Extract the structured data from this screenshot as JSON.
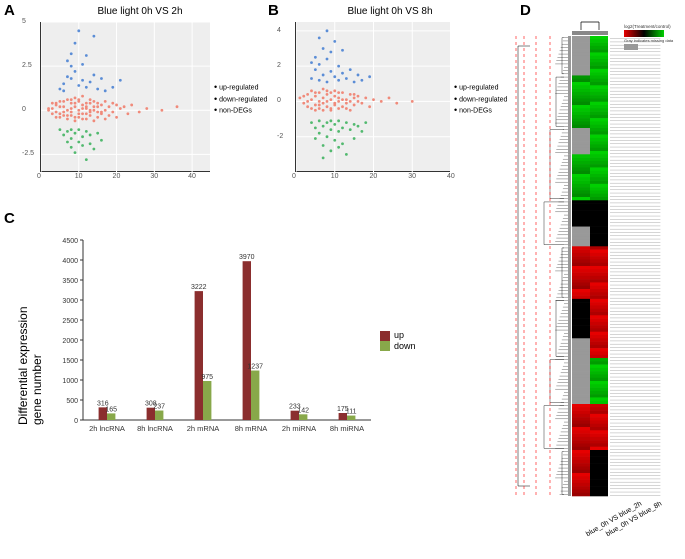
{
  "panelA": {
    "label": "A",
    "title": "Blue light 0h  VS   2h",
    "type": "scatter",
    "xlim": [
      0,
      45
    ],
    "xticks": [
      0,
      10,
      20,
      30,
      40
    ],
    "ylim": [
      -3.5,
      5
    ],
    "yticks": [
      -2.5,
      0,
      2.5,
      5
    ],
    "background_color": "#eeeeee",
    "categories": [
      "up-regulated",
      "down-regulated",
      "non-DEGs"
    ],
    "colors": {
      "up-regulated": "#5b8dd6",
      "down-regulated": "#52b96f",
      "non-DEGs": "#f08a7a"
    },
    "points": {
      "non-DEGs": [
        [
          2,
          0.1
        ],
        [
          3,
          -0.2
        ],
        [
          4,
          0.3
        ],
        [
          5,
          0.5
        ],
        [
          5,
          -0.4
        ],
        [
          6,
          0.2
        ],
        [
          6,
          -0.1
        ],
        [
          7,
          0.6
        ],
        [
          7,
          -0.5
        ],
        [
          8,
          0.1
        ],
        [
          8,
          0.4
        ],
        [
          8,
          -0.3
        ],
        [
          9,
          0.2
        ],
        [
          9,
          -0.6
        ],
        [
          9,
          0.7
        ],
        [
          10,
          0.0
        ],
        [
          10,
          0.5
        ],
        [
          10,
          -0.4
        ],
        [
          11,
          0.3
        ],
        [
          11,
          -0.2
        ],
        [
          11,
          0.8
        ],
        [
          12,
          -0.5
        ],
        [
          12,
          0.4
        ],
        [
          12,
          0.1
        ],
        [
          13,
          0.6
        ],
        [
          13,
          -0.3
        ],
        [
          13,
          0.0
        ],
        [
          14,
          0.2
        ],
        [
          14,
          -0.6
        ],
        [
          14,
          0.5
        ],
        [
          15,
          -0.1
        ],
        [
          15,
          0.4
        ],
        [
          15,
          -0.4
        ],
        [
          16,
          0.3
        ],
        [
          16,
          -0.2
        ],
        [
          17,
          0.0
        ],
        [
          17,
          0.5
        ],
        [
          17,
          -0.5
        ],
        [
          18,
          0.2
        ],
        [
          18,
          -0.3
        ],
        [
          19,
          0.4
        ],
        [
          19,
          -0.1
        ],
        [
          20,
          0.3
        ],
        [
          20,
          -0.4
        ],
        [
          21,
          0.1
        ],
        [
          22,
          0.2
        ],
        [
          23,
          -0.2
        ],
        [
          24,
          0.3
        ],
        [
          26,
          -0.1
        ],
        [
          28,
          0.1
        ],
        [
          32,
          0.0
        ],
        [
          36,
          0.2
        ],
        [
          2,
          0.0
        ],
        [
          3,
          0.1
        ],
        [
          4,
          -0.1
        ],
        [
          4,
          0.4
        ],
        [
          5,
          0.2
        ],
        [
          6,
          -0.3
        ],
        [
          7,
          0.0
        ],
        [
          8,
          -0.1
        ],
        [
          9,
          0.4
        ],
        [
          10,
          -0.2
        ],
        [
          11,
          0.1
        ],
        [
          12,
          0.2
        ],
        [
          13,
          -0.1
        ],
        [
          14,
          0.0
        ],
        [
          15,
          0.2
        ],
        [
          16,
          -0.1
        ],
        [
          3,
          0.4
        ],
        [
          4,
          -0.4
        ],
        [
          5,
          -0.2
        ],
        [
          6,
          0.5
        ],
        [
          7,
          -0.3
        ],
        [
          8,
          0.6
        ],
        [
          9,
          -0.4
        ],
        [
          10,
          0.6
        ],
        [
          11,
          -0.5
        ],
        [
          12,
          -0.2
        ],
        [
          13,
          0.4
        ]
      ],
      "up-regulated": [
        [
          5,
          1.2
        ],
        [
          6,
          1.5
        ],
        [
          7,
          2.8
        ],
        [
          8,
          3.2
        ],
        [
          8,
          1.8
        ],
        [
          9,
          2.2
        ],
        [
          9,
          3.8
        ],
        [
          10,
          1.4
        ],
        [
          10,
          4.5
        ],
        [
          11,
          2.6
        ],
        [
          12,
          1.3
        ],
        [
          12,
          3.1
        ],
        [
          13,
          1.6
        ],
        [
          14,
          2.0
        ],
        [
          15,
          1.2
        ],
        [
          16,
          1.8
        ],
        [
          17,
          1.1
        ],
        [
          19,
          1.3
        ],
        [
          21,
          1.7
        ],
        [
          7,
          1.9
        ],
        [
          8,
          2.5
        ],
        [
          11,
          1.7
        ],
        [
          14,
          4.2
        ],
        [
          6,
          1.1
        ]
      ],
      "down-regulated": [
        [
          5,
          -1.1
        ],
        [
          6,
          -1.4
        ],
        [
          7,
          -1.2
        ],
        [
          8,
          -1.6
        ],
        [
          8,
          -2.1
        ],
        [
          9,
          -1.3
        ],
        [
          9,
          -2.4
        ],
        [
          10,
          -1.1
        ],
        [
          10,
          -1.8
        ],
        [
          11,
          -1.5
        ],
        [
          12,
          -1.2
        ],
        [
          12,
          -2.8
        ],
        [
          13,
          -1.4
        ],
        [
          14,
          -2.2
        ],
        [
          15,
          -1.3
        ],
        [
          16,
          -1.7
        ],
        [
          7,
          -1.8
        ],
        [
          8,
          -1.1
        ],
        [
          11,
          -2.0
        ],
        [
          13,
          -1.9
        ]
      ]
    }
  },
  "panelB": {
    "label": "B",
    "title": "Blue light  0h  VS  8h",
    "type": "scatter",
    "xlim": [
      0,
      40
    ],
    "xticks": [
      0,
      10,
      20,
      30,
      40
    ],
    "ylim": [
      -4,
      4.5
    ],
    "yticks": [
      -2,
      0,
      2,
      4
    ],
    "background_color": "#eeeeee",
    "categories": [
      "up-regulated",
      "down-regulated",
      "non-DEGs"
    ],
    "colors": {
      "up-regulated": "#5b8dd6",
      "down-regulated": "#52b96f",
      "non-DEGs": "#f08a7a"
    },
    "points": {
      "non-DEGs": [
        [
          1,
          0.2
        ],
        [
          2,
          -0.1
        ],
        [
          3,
          0.4
        ],
        [
          3,
          -0.3
        ],
        [
          4,
          0.1
        ],
        [
          4,
          0.6
        ],
        [
          5,
          -0.2
        ],
        [
          5,
          0.3
        ],
        [
          5,
          -0.5
        ],
        [
          6,
          0.0
        ],
        [
          6,
          0.5
        ],
        [
          6,
          -0.4
        ],
        [
          7,
          0.2
        ],
        [
          7,
          -0.1
        ],
        [
          7,
          0.7
        ],
        [
          8,
          -0.3
        ],
        [
          8,
          0.4
        ],
        [
          8,
          0.0
        ],
        [
          9,
          0.5
        ],
        [
          9,
          -0.5
        ],
        [
          9,
          0.1
        ],
        [
          10,
          0.3
        ],
        [
          10,
          -0.2
        ],
        [
          10,
          0.6
        ],
        [
          11,
          -0.4
        ],
        [
          11,
          0.2
        ],
        [
          11,
          0.0
        ],
        [
          12,
          0.5
        ],
        [
          12,
          -0.3
        ],
        [
          13,
          0.1
        ],
        [
          13,
          -0.1
        ],
        [
          14,
          0.4
        ],
        [
          14,
          -0.5
        ],
        [
          15,
          0.2
        ],
        [
          15,
          -0.2
        ],
        [
          16,
          0.0
        ],
        [
          16,
          0.3
        ],
        [
          17,
          -0.1
        ],
        [
          18,
          0.2
        ],
        [
          19,
          -0.3
        ],
        [
          20,
          0.1
        ],
        [
          22,
          0.0
        ],
        [
          24,
          0.2
        ],
        [
          26,
          -0.1
        ],
        [
          30,
          0.0
        ],
        [
          2,
          0.3
        ],
        [
          3,
          0.0
        ],
        [
          4,
          -0.4
        ],
        [
          5,
          0.5
        ],
        [
          6,
          -0.2
        ],
        [
          7,
          -0.5
        ],
        [
          8,
          0.6
        ],
        [
          9,
          -0.4
        ],
        [
          10,
          -0.1
        ],
        [
          11,
          0.5
        ],
        [
          12,
          0.1
        ],
        [
          13,
          -0.4
        ],
        [
          14,
          0.0
        ],
        [
          15,
          0.4
        ]
      ],
      "up-regulated": [
        [
          4,
          1.3
        ],
        [
          5,
          1.8
        ],
        [
          5,
          2.5
        ],
        [
          6,
          1.2
        ],
        [
          6,
          2.1
        ],
        [
          7,
          3.0
        ],
        [
          7,
          1.5
        ],
        [
          8,
          2.4
        ],
        [
          8,
          1.1
        ],
        [
          9,
          1.7
        ],
        [
          9,
          2.8
        ],
        [
          10,
          1.4
        ],
        [
          10,
          3.4
        ],
        [
          11,
          2.0
        ],
        [
          11,
          1.2
        ],
        [
          12,
          1.6
        ],
        [
          12,
          2.9
        ],
        [
          13,
          1.3
        ],
        [
          14,
          1.8
        ],
        [
          15,
          1.1
        ],
        [
          16,
          1.5
        ],
        [
          17,
          1.2
        ],
        [
          19,
          1.4
        ],
        [
          6,
          3.6
        ],
        [
          8,
          4.0
        ],
        [
          4,
          2.2
        ]
      ],
      "down-regulated": [
        [
          4,
          -1.2
        ],
        [
          5,
          -1.5
        ],
        [
          5,
          -2.1
        ],
        [
          6,
          -1.1
        ],
        [
          6,
          -1.8
        ],
        [
          7,
          -1.4
        ],
        [
          7,
          -2.5
        ],
        [
          8,
          -1.2
        ],
        [
          8,
          -2.0
        ],
        [
          9,
          -1.6
        ],
        [
          9,
          -2.8
        ],
        [
          10,
          -1.3
        ],
        [
          10,
          -2.2
        ],
        [
          11,
          -1.7
        ],
        [
          11,
          -1.1
        ],
        [
          12,
          -1.5
        ],
        [
          12,
          -2.4
        ],
        [
          13,
          -1.2
        ],
        [
          13,
          -3.0
        ],
        [
          14,
          -1.6
        ],
        [
          15,
          -1.3
        ],
        [
          15,
          -2.1
        ],
        [
          16,
          -1.4
        ],
        [
          17,
          -1.7
        ],
        [
          18,
          -1.2
        ],
        [
          7,
          -3.2
        ],
        [
          9,
          -1.1
        ],
        [
          11,
          -2.6
        ]
      ]
    }
  },
  "panelC": {
    "label": "C",
    "type": "bar",
    "ylabel": "Differential expression\ngene number",
    "ylim": [
      0,
      4500
    ],
    "ytick_step": 500,
    "categories": [
      "2h lncRNA",
      "8h lncRNA",
      "2h mRNA",
      "8h mRNA",
      "2h miRNA",
      "8h miRNA"
    ],
    "series": [
      {
        "name": "up",
        "color": "#8b2e2e",
        "values": [
          316,
          308,
          3222,
          3970,
          233,
          175
        ]
      },
      {
        "name": "down",
        "color": "#88a84a",
        "values": [
          165,
          237,
          975,
          1237,
          142,
          111
        ]
      }
    ],
    "bar_width": 0.35,
    "label_fontsize": 8,
    "axis_color": "#333333",
    "background_color": "#ffffff"
  },
  "panelD": {
    "label": "D",
    "type": "heatmap",
    "columns": [
      "blue_0h VS blue_2h",
      "blue_0h VS blue_8h"
    ],
    "legend_title": "log2(Treatment/control)",
    "legend_missing": "Gray indicates missing data",
    "color_low": "#e60000",
    "color_mid": "#000000",
    "color_high": "#00d000",
    "missing_color": "#999999",
    "dendrogram_color": "#000000",
    "cut_line_color": "#ff0000",
    "n_rows": 140,
    "blocks": [
      {
        "rows": [
          0,
          12
        ],
        "c1": "missing",
        "c2": "high"
      },
      {
        "rows": [
          12,
          28
        ],
        "c1": "high",
        "c2": "high"
      },
      {
        "rows": [
          28,
          36
        ],
        "c1": "missing",
        "c2": "high"
      },
      {
        "rows": [
          36,
          50
        ],
        "c1": "high",
        "c2": "high"
      },
      {
        "rows": [
          50,
          58
        ],
        "c1": "mid",
        "c2": "mid"
      },
      {
        "rows": [
          58,
          64
        ],
        "c1": "missing",
        "c2": "mid"
      },
      {
        "rows": [
          64,
          80
        ],
        "c1": "low",
        "c2": "low"
      },
      {
        "rows": [
          80,
          92
        ],
        "c1": "mid",
        "c2": "low"
      },
      {
        "rows": [
          92,
          98
        ],
        "c1": "missing",
        "c2": "low"
      },
      {
        "rows": [
          98,
          112
        ],
        "c1": "missing",
        "c2": "high"
      },
      {
        "rows": [
          112,
          126
        ],
        "c1": "low",
        "c2": "low"
      },
      {
        "rows": [
          126,
          140
        ],
        "c1": "low",
        "c2": "mid"
      }
    ]
  }
}
